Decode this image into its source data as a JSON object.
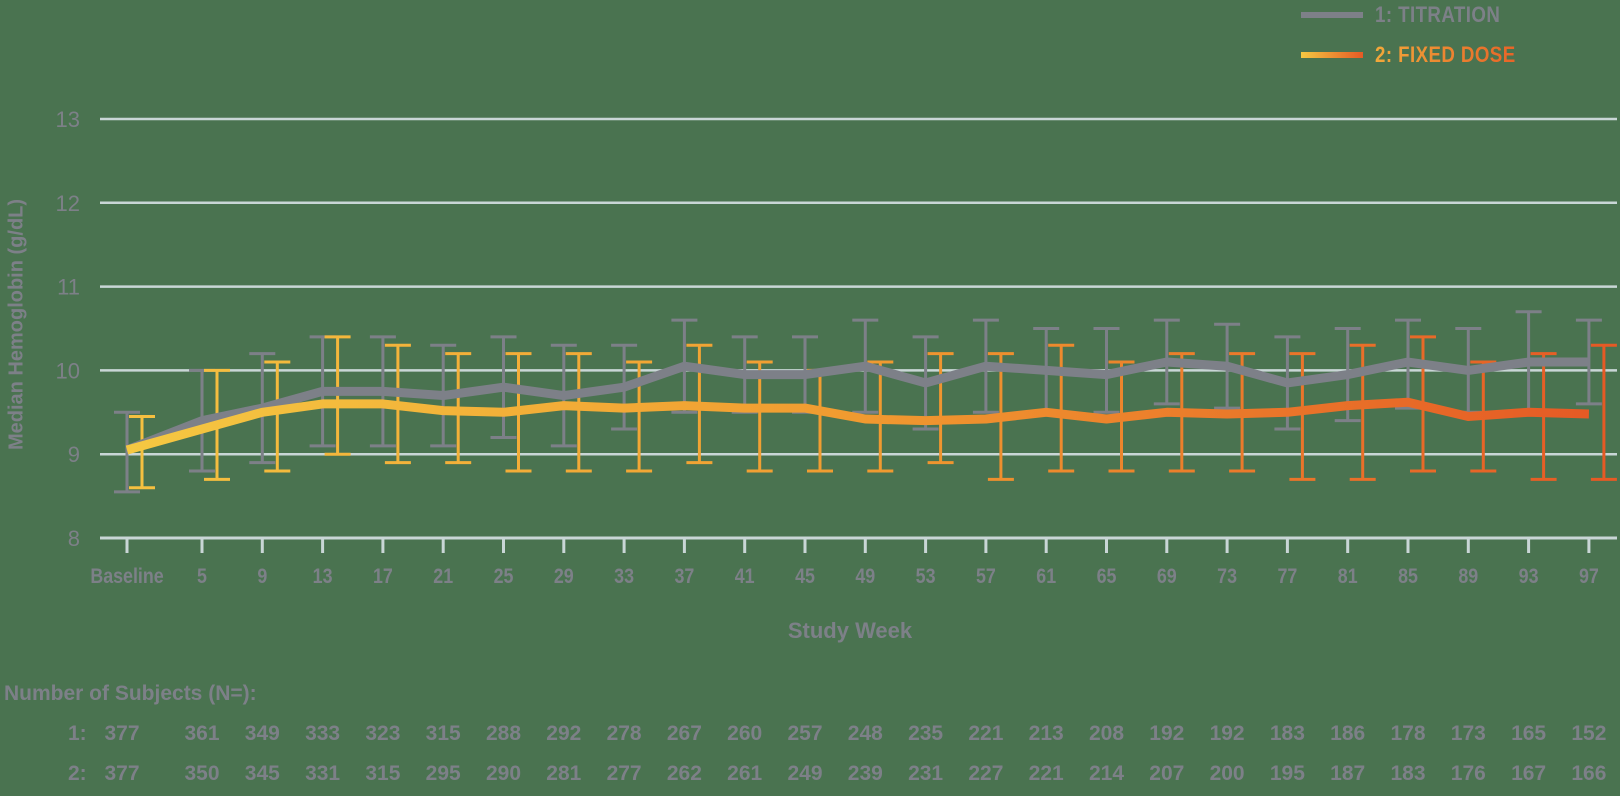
{
  "legend": {
    "items": [
      {
        "label": "1: TITRATION",
        "color": "#7d8088"
      },
      {
        "label": "2: FIXED DOSE",
        "color_start": "#f2b83a",
        "color_end": "#e8632a"
      }
    ]
  },
  "axes": {
    "ylabel": "Median Hemoglobin (g/dL)",
    "xlabel": "Study Week"
  },
  "subjects": {
    "title": "Number of Subjects (N=):",
    "rows": [
      {
        "label": "1:",
        "values": [
          377,
          361,
          349,
          333,
          323,
          315,
          288,
          292,
          278,
          267,
          260,
          257,
          248,
          235,
          221,
          213,
          208,
          192,
          192,
          183,
          186,
          178,
          173,
          165,
          152
        ]
      },
      {
        "label": "2:",
        "values": [
          377,
          350,
          345,
          331,
          315,
          295,
          290,
          281,
          277,
          262,
          261,
          249,
          239,
          231,
          227,
          221,
          214,
          207,
          200,
          195,
          187,
          183,
          176,
          167,
          166
        ]
      }
    ]
  },
  "chart_data": {
    "type": "line",
    "title": "",
    "xlabel": "Study Week",
    "ylabel": "Median Hemoglobin (g/dL)",
    "ylim": [
      8,
      13
    ],
    "yticks": [
      8,
      9,
      10,
      11,
      12,
      13
    ],
    "grid": true,
    "legend_position": "top-right",
    "categories": [
      "Baseline",
      "5",
      "9",
      "13",
      "17",
      "21",
      "25",
      "29",
      "33",
      "37",
      "41",
      "45",
      "49",
      "53",
      "57",
      "61",
      "65",
      "69",
      "73",
      "77",
      "81",
      "85",
      "89",
      "93",
      "97"
    ],
    "series": [
      {
        "name": "1: TITRATION",
        "color": "#7d8088",
        "values": [
          9.05,
          9.4,
          9.55,
          9.75,
          9.75,
          9.7,
          9.8,
          9.7,
          9.8,
          10.05,
          9.95,
          9.95,
          10.05,
          9.85,
          10.05,
          10.0,
          9.95,
          10.1,
          10.05,
          9.85,
          9.95,
          10.1,
          10.0,
          10.1,
          10.1
        ],
        "error_upper": [
          9.5,
          10.0,
          10.2,
          10.4,
          10.4,
          10.3,
          10.4,
          10.3,
          10.3,
          10.6,
          10.4,
          10.4,
          10.6,
          10.4,
          10.6,
          10.5,
          10.5,
          10.6,
          10.55,
          10.4,
          10.5,
          10.6,
          10.5,
          10.7,
          10.6
        ],
        "error_lower": [
          8.55,
          8.8,
          8.9,
          9.1,
          9.1,
          9.1,
          9.2,
          9.1,
          9.3,
          9.5,
          9.5,
          9.5,
          9.5,
          9.3,
          9.5,
          9.5,
          9.5,
          9.6,
          9.55,
          9.3,
          9.4,
          9.55,
          9.5,
          9.5,
          9.6
        ]
      },
      {
        "name": "2: FIXED DOSE",
        "color": "#f0a030",
        "values": [
          9.05,
          9.3,
          9.5,
          9.6,
          9.6,
          9.52,
          9.5,
          9.58,
          9.55,
          9.58,
          9.55,
          9.55,
          9.42,
          9.4,
          9.42,
          9.5,
          9.42,
          9.5,
          9.48,
          9.5,
          9.58,
          9.62,
          9.45,
          9.5,
          9.48
        ],
        "error_upper": [
          9.45,
          10.0,
          10.1,
          10.4,
          10.3,
          10.2,
          10.2,
          10.2,
          10.1,
          10.3,
          10.1,
          10.0,
          10.1,
          10.2,
          10.2,
          10.3,
          10.1,
          10.2,
          10.2,
          10.2,
          10.3,
          10.4,
          10.1,
          10.2,
          10.3
        ],
        "error_lower": [
          8.6,
          8.7,
          8.8,
          9.0,
          8.9,
          8.9,
          8.8,
          8.8,
          8.8,
          8.9,
          8.8,
          8.8,
          8.8,
          8.9,
          8.7,
          8.8,
          8.8,
          8.8,
          8.8,
          8.7,
          8.7,
          8.8,
          8.8,
          8.7,
          8.7
        ]
      }
    ]
  }
}
